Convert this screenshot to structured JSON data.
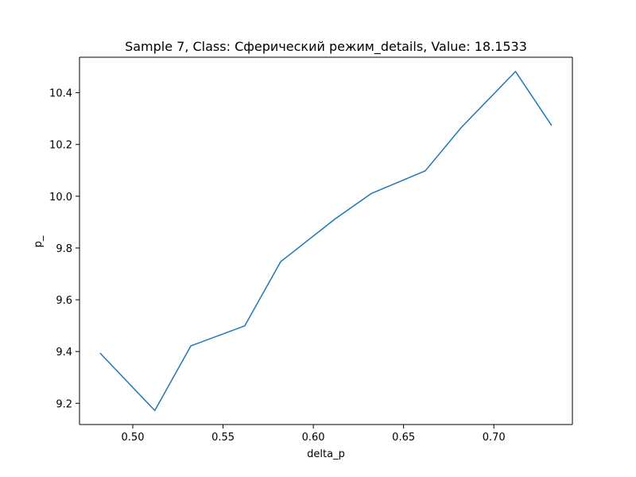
{
  "chart_data": {
    "type": "line",
    "title": "Sample 7, Class: Сферический режим_details, Value: 18.1533",
    "xlabel": "delta_p",
    "ylabel": "p_",
    "xlim": [
      0.4705,
      0.7435
    ],
    "ylim": [
      9.118,
      10.537
    ],
    "xticks": [
      0.5,
      0.55,
      0.6,
      0.65,
      0.7
    ],
    "xtick_labels": [
      "0.50",
      "0.55",
      "0.60",
      "0.65",
      "0.70"
    ],
    "yticks": [
      9.2,
      9.4,
      9.6,
      9.8,
      10.0,
      10.2,
      10.4
    ],
    "ytick_labels": [
      "9.2",
      "9.4",
      "9.6",
      "9.8",
      "10.0",
      "10.2",
      "10.4"
    ],
    "grid": false,
    "series": [
      {
        "color": "#1f77b4",
        "x": [
          0.4819,
          0.5122,
          0.5322,
          0.562,
          0.5819,
          0.612,
          0.6322,
          0.662,
          0.682,
          0.712,
          0.732
        ],
        "y": [
          9.394,
          9.172,
          9.422,
          9.499,
          9.747,
          9.912,
          10.011,
          10.098,
          10.266,
          10.482,
          10.273
        ]
      }
    ]
  }
}
